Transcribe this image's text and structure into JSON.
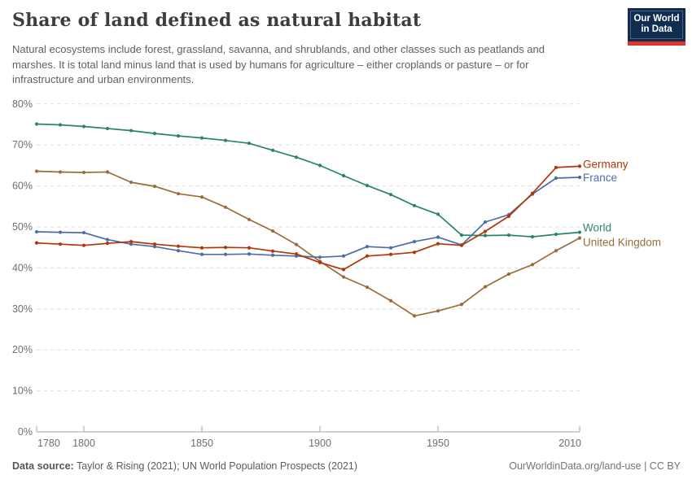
{
  "header": {
    "title": "Share of land defined as natural habitat",
    "subtitle_lines": [
      "Natural ecosystems include forest, grassland, savanna, and shrublands, and other classes such as peatlands and",
      "marshes. It is total land minus land that is used by humans for agriculture – either croplands or pasture – or for",
      "infrastructure and urban environments."
    ],
    "logo": {
      "line1": "Our World",
      "line2": "in Data"
    }
  },
  "brand": {
    "logo_background": "#102d50",
    "logo_accent_red": "#e0362e",
    "title_color": "#3d3d3d",
    "axis_text_color": "#6e6e6e",
    "gridline_color": "#dcdcdc",
    "axis_line_color": "#a5a5a5"
  },
  "chart_data": {
    "type": "line",
    "title": "Share of land defined as natural habitat",
    "xlabel": "",
    "ylabel": "",
    "ylim": [
      0,
      80
    ],
    "yticks": [
      0,
      10,
      20,
      30,
      40,
      50,
      60,
      70,
      80
    ],
    "ytick_suffix": "%",
    "xticks": [
      1780,
      1800,
      1850,
      1900,
      1950,
      2010
    ],
    "xlim": [
      1780,
      2010
    ],
    "grid": "horizontal-dashed",
    "legend_position": "right-of-line-ends",
    "x": [
      1780,
      1790,
      1800,
      1810,
      1820,
      1830,
      1840,
      1850,
      1860,
      1870,
      1880,
      1890,
      1900,
      1910,
      1920,
      1930,
      1940,
      1950,
      1960,
      1970,
      1980,
      1990,
      2000,
      2010
    ],
    "series": [
      {
        "name": "Germany",
        "color": "#b13507",
        "values": [
          46.1,
          45.8,
          45.5,
          46.0,
          46.4,
          45.8,
          45.3,
          44.9,
          45.0,
          44.9,
          44.1,
          43.4,
          41.3,
          39.6,
          42.9,
          43.3,
          43.8,
          45.9,
          45.5,
          48.9,
          52.6,
          58.2,
          64.5,
          64.8
        ]
      },
      {
        "name": "France",
        "color": "#4c6da9",
        "values": [
          48.8,
          48.7,
          48.6,
          46.9,
          45.8,
          45.2,
          44.2,
          43.3,
          43.3,
          43.4,
          43.1,
          42.9,
          42.6,
          42.9,
          45.2,
          44.9,
          46.4,
          47.5,
          45.6,
          51.2,
          53.0,
          58.0,
          61.9,
          62.1
        ]
      },
      {
        "name": "World",
        "color": "#2c8465",
        "values": [
          75.1,
          74.9,
          74.5,
          74.0,
          73.5,
          72.8,
          72.2,
          71.7,
          71.1,
          70.4,
          68.7,
          67.0,
          65.0,
          62.5,
          60.1,
          57.9,
          55.2,
          53.1,
          48.0,
          47.9,
          48.0,
          47.6,
          48.2,
          48.7
        ]
      },
      {
        "name": "United Kingdom",
        "color": "#996d39",
        "values": [
          63.6,
          63.4,
          63.3,
          63.4,
          60.9,
          59.9,
          58.1,
          57.3,
          54.8,
          51.8,
          49.0,
          45.7,
          41.6,
          37.8,
          35.3,
          32.0,
          28.3,
          29.5,
          31.1,
          35.4,
          38.5,
          40.8,
          44.2,
          47.3
        ]
      }
    ]
  },
  "footer": {
    "data_source_label": "Data source:",
    "data_source_text": " Taylor & Rising (2021); UN World Population Prospects (2021)",
    "link_text": "OurWorldinData.org/land-use | CC BY"
  }
}
